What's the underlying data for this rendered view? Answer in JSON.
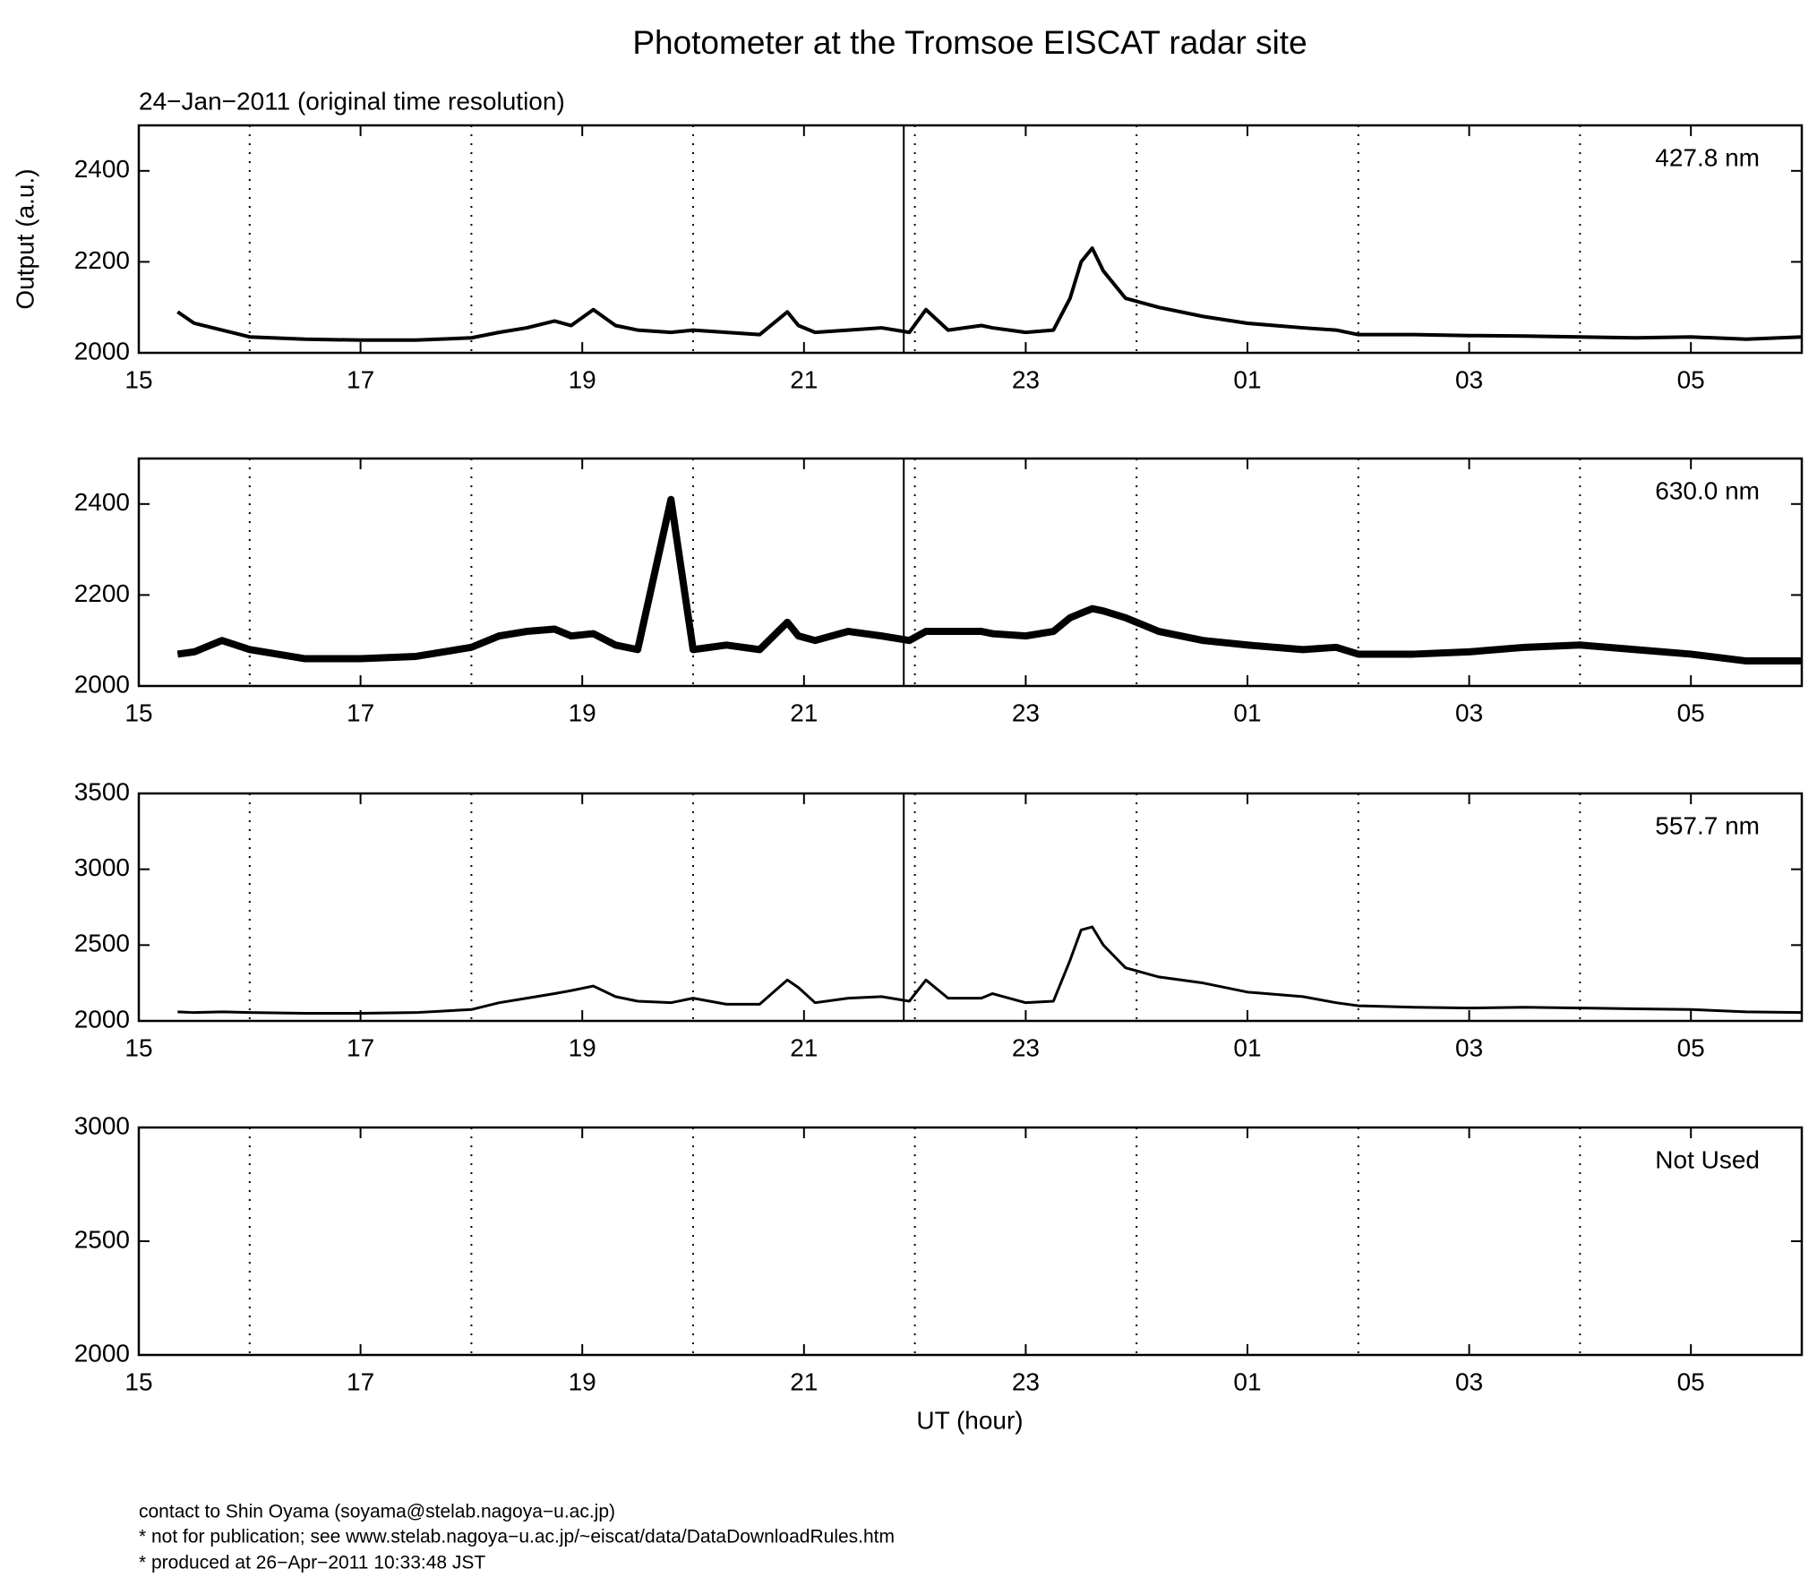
{
  "title": "Photometer at the Tromsoe EISCAT radar site",
  "subtitle": "24−Jan−2011 (original time resolution)",
  "ylabel": "Output (a.u.)",
  "xlabel": "UT (hour)",
  "footer": [
    "contact to Shin Oyama (soyama@stelab.nagoya−u.ac.jp)",
    "* not for publication; see www.stelab.nagoya−u.ac.jp/~eiscat/data/DataDownloadRules.htm",
    "* produced at 26−Apr−2011 10:33:48 JST"
  ],
  "chart_data": [
    {
      "type": "line",
      "annotation": "427.8 nm",
      "color": "#000000",
      "stroke": 4,
      "x": [
        15.35,
        15.5,
        15.75,
        16,
        16.5,
        17,
        17.5,
        18,
        18.25,
        18.5,
        18.75,
        18.9,
        19.1,
        19.3,
        19.5,
        19.8,
        20,
        20.3,
        20.6,
        20.85,
        20.95,
        21.1,
        21.4,
        21.7,
        21.95,
        22.1,
        22.3,
        22.6,
        22.7,
        23,
        23.25,
        23.4,
        23.5,
        23.6,
        23.7,
        23.9,
        24.2,
        24.6,
        25,
        25.5,
        25.8,
        26,
        26.5,
        27,
        27.5,
        28,
        28.5,
        29,
        29.5,
        30
      ],
      "values": [
        2090,
        2065,
        2050,
        2035,
        2030,
        2028,
        2028,
        2033,
        2045,
        2055,
        2070,
        2060,
        2095,
        2060,
        2050,
        2045,
        2050,
        2045,
        2040,
        2090,
        2060,
        2045,
        2050,
        2055,
        2045,
        2095,
        2050,
        2060,
        2055,
        2045,
        2050,
        2120,
        2200,
        2230,
        2180,
        2120,
        2100,
        2080,
        2065,
        2055,
        2050,
        2040,
        2040,
        2038,
        2037,
        2035,
        2033,
        2035,
        2030,
        2035
      ],
      "vlines": [
        21.9
      ],
      "xlim": [
        15,
        30
      ],
      "xticks": [
        15,
        17,
        19,
        21,
        23,
        {
          "value": 25,
          "label": "01"
        },
        {
          "value": 27,
          "label": "03"
        },
        {
          "value": 29,
          "label": "05"
        }
      ],
      "xminorticks": [
        16,
        18,
        20,
        22,
        24,
        26,
        28
      ],
      "grid": "dotted",
      "ylim": [
        2000,
        2500
      ],
      "yticks": [
        2000,
        2200,
        2400
      ]
    },
    {
      "type": "line",
      "annotation": "630.0 nm",
      "color": "#000000",
      "stroke": 8,
      "x": [
        15.35,
        15.5,
        15.75,
        16,
        16.5,
        17,
        17.5,
        18,
        18.25,
        18.5,
        18.75,
        18.9,
        19.1,
        19.3,
        19.5,
        19.8,
        20,
        20.3,
        20.6,
        20.85,
        20.95,
        21.1,
        21.4,
        21.7,
        21.95,
        22.1,
        22.3,
        22.6,
        22.7,
        23,
        23.25,
        23.4,
        23.5,
        23.6,
        23.7,
        23.9,
        24.2,
        24.6,
        25,
        25.5,
        25.8,
        26,
        26.5,
        27,
        27.5,
        28,
        28.5,
        29,
        29.5,
        30
      ],
      "values": [
        2070,
        2075,
        2100,
        2080,
        2060,
        2060,
        2065,
        2085,
        2110,
        2120,
        2125,
        2110,
        2115,
        2090,
        2080,
        2410,
        2080,
        2090,
        2080,
        2140,
        2110,
        2100,
        2120,
        2110,
        2100,
        2120,
        2120,
        2120,
        2115,
        2110,
        2120,
        2150,
        2160,
        2170,
        2165,
        2150,
        2120,
        2100,
        2090,
        2080,
        2085,
        2070,
        2070,
        2075,
        2085,
        2090,
        2080,
        2070,
        2055,
        2055
      ],
      "vlines": [
        21.9
      ],
      "xlim": [
        15,
        30
      ],
      "xticks": [
        15,
        17,
        19,
        21,
        23,
        {
          "value": 25,
          "label": "01"
        },
        {
          "value": 27,
          "label": "03"
        },
        {
          "value": 29,
          "label": "05"
        }
      ],
      "xminorticks": [
        16,
        18,
        20,
        22,
        24,
        26,
        28
      ],
      "grid": "dotted",
      "ylim": [
        2000,
        2500
      ],
      "yticks": [
        2000,
        2200,
        2400
      ]
    },
    {
      "type": "line",
      "annotation": "557.7 nm",
      "color": "#000000",
      "stroke": 3,
      "x": [
        15.35,
        15.5,
        15.75,
        16,
        16.5,
        17,
        17.5,
        18,
        18.25,
        18.5,
        18.75,
        18.9,
        19.1,
        19.3,
        19.5,
        19.8,
        20,
        20.3,
        20.6,
        20.85,
        20.95,
        21.1,
        21.4,
        21.7,
        21.95,
        22.1,
        22.3,
        22.6,
        22.7,
        23,
        23.25,
        23.4,
        23.5,
        23.6,
        23.7,
        23.9,
        24.2,
        24.6,
        25,
        25.5,
        25.8,
        26,
        26.5,
        27,
        27.5,
        28,
        28.5,
        29,
        29.5,
        30
      ],
      "values": [
        2060,
        2055,
        2060,
        2055,
        2050,
        2050,
        2055,
        2075,
        2120,
        2150,
        2180,
        2200,
        2230,
        2160,
        2130,
        2120,
        2150,
        2110,
        2110,
        2270,
        2220,
        2120,
        2150,
        2160,
        2130,
        2270,
        2150,
        2150,
        2180,
        2120,
        2130,
        2400,
        2600,
        2620,
        2500,
        2350,
        2290,
        2250,
        2190,
        2160,
        2120,
        2100,
        2090,
        2085,
        2090,
        2085,
        2080,
        2075,
        2060,
        2055
      ],
      "vlines": [
        21.9
      ],
      "xlim": [
        15,
        30
      ],
      "xticks": [
        15,
        17,
        19,
        21,
        23,
        {
          "value": 25,
          "label": "01"
        },
        {
          "value": 27,
          "label": "03"
        },
        {
          "value": 29,
          "label": "05"
        }
      ],
      "xminorticks": [
        16,
        18,
        20,
        22,
        24,
        26,
        28
      ],
      "grid": "dotted",
      "ylim": [
        2000,
        3500
      ],
      "yticks": [
        2000,
        2500,
        3000,
        3500
      ]
    },
    {
      "type": "line",
      "annotation": "Not Used",
      "xlim": [
        15,
        30
      ],
      "xticks": [
        15,
        17,
        19,
        21,
        23,
        {
          "value": 25,
          "label": "01"
        },
        {
          "value": 27,
          "label": "03"
        },
        {
          "value": 29,
          "label": "05"
        }
      ],
      "xminorticks": [
        16,
        18,
        20,
        22,
        24,
        26,
        28
      ],
      "grid": "dotted",
      "ylim": [
        2000,
        3000
      ],
      "yticks": [
        2000,
        2500,
        3000
      ]
    }
  ]
}
